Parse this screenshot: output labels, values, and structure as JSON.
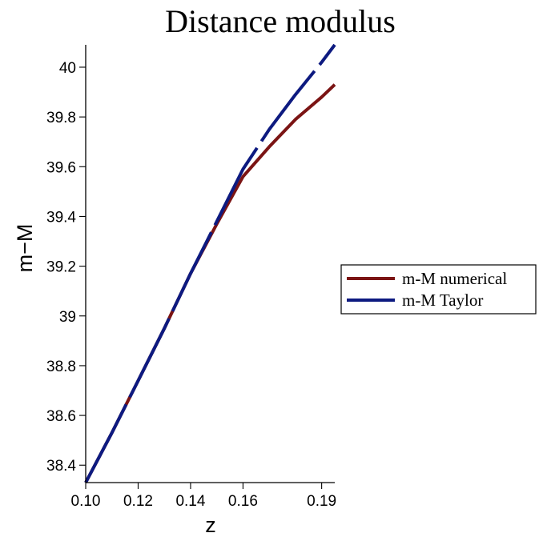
{
  "chart_data": {
    "type": "line",
    "title": "Distance modulus",
    "xlabel": "z",
    "ylabel": "m−M",
    "xlim": [
      0.1,
      0.195
    ],
    "ylim": [
      38.33,
      40.09
    ],
    "xticks": [
      "0.10",
      "0.12",
      "0.14",
      "0.16",
      "0.19"
    ],
    "xtick_values": [
      0.1,
      0.12,
      0.14,
      0.16,
      0.19
    ],
    "yticks": [
      "38.4",
      "38.6",
      "38.8",
      "39",
      "39.2",
      "39.4",
      "39.6",
      "39.8",
      "40"
    ],
    "ytick_values": [
      38.4,
      38.6,
      38.8,
      39.0,
      39.2,
      39.4,
      39.6,
      39.8,
      40.0
    ],
    "grid": false,
    "legend_position": "right",
    "series": [
      {
        "name": "m-M numerical",
        "color": "#7b1414",
        "style": "solid",
        "x": [
          0.1,
          0.11,
          0.12,
          0.13,
          0.14,
          0.15,
          0.16,
          0.17,
          0.18,
          0.19,
          0.195
        ],
        "y": [
          38.33,
          38.53,
          38.74,
          38.95,
          39.17,
          39.37,
          39.56,
          39.68,
          39.79,
          39.88,
          39.93
        ]
      },
      {
        "name": "m-M Taylor",
        "color": "#0d1a80",
        "style": "dashed",
        "x": [
          0.1,
          0.11,
          0.12,
          0.13,
          0.14,
          0.15,
          0.16,
          0.17,
          0.18,
          0.19,
          0.195
        ],
        "y": [
          38.33,
          38.53,
          38.74,
          38.95,
          39.17,
          39.38,
          39.59,
          39.75,
          39.89,
          40.02,
          40.09
        ]
      }
    ]
  }
}
